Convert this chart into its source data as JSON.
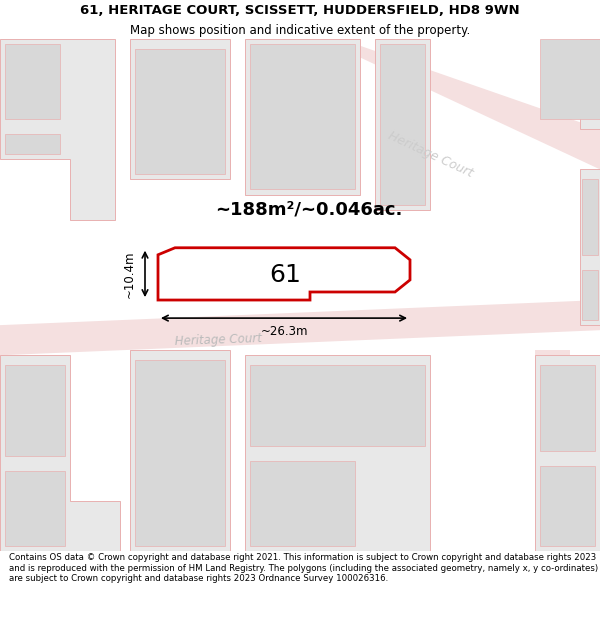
{
  "title_line1": "61, HERITAGE COURT, SCISSETT, HUDDERSFIELD, HD8 9WN",
  "title_line2": "Map shows position and indicative extent of the property.",
  "footer": "Contains OS data © Crown copyright and database right 2021. This information is subject to Crown copyright and database rights 2023 and is reproduced with the permission of HM Land Registry. The polygons (including the associated geometry, namely x, y co-ordinates) are subject to Crown copyright and database rights 2023 Ordnance Survey 100026316.",
  "area_label": "~188m²/~0.046ac.",
  "width_label": "~26.3m",
  "height_label": "~10.4m",
  "property_number": "61",
  "road_label_lower": "Heritage Court",
  "road_label_upper": "Heritage Court",
  "bld_fill": "#e8e8e8",
  "bld_edge": "#e8b0b0",
  "bld_inner_fill": "#d8d8d8",
  "road_fill": "#f5e0e0",
  "highlight_fill": "#ffffff",
  "highlight_edge": "#cc0000",
  "highlight_lw": 2.0,
  "title_fontsize": 9.5,
  "subtitle_fontsize": 8.5,
  "footer_fontsize": 6.2,
  "map_bg": "#ffffff"
}
